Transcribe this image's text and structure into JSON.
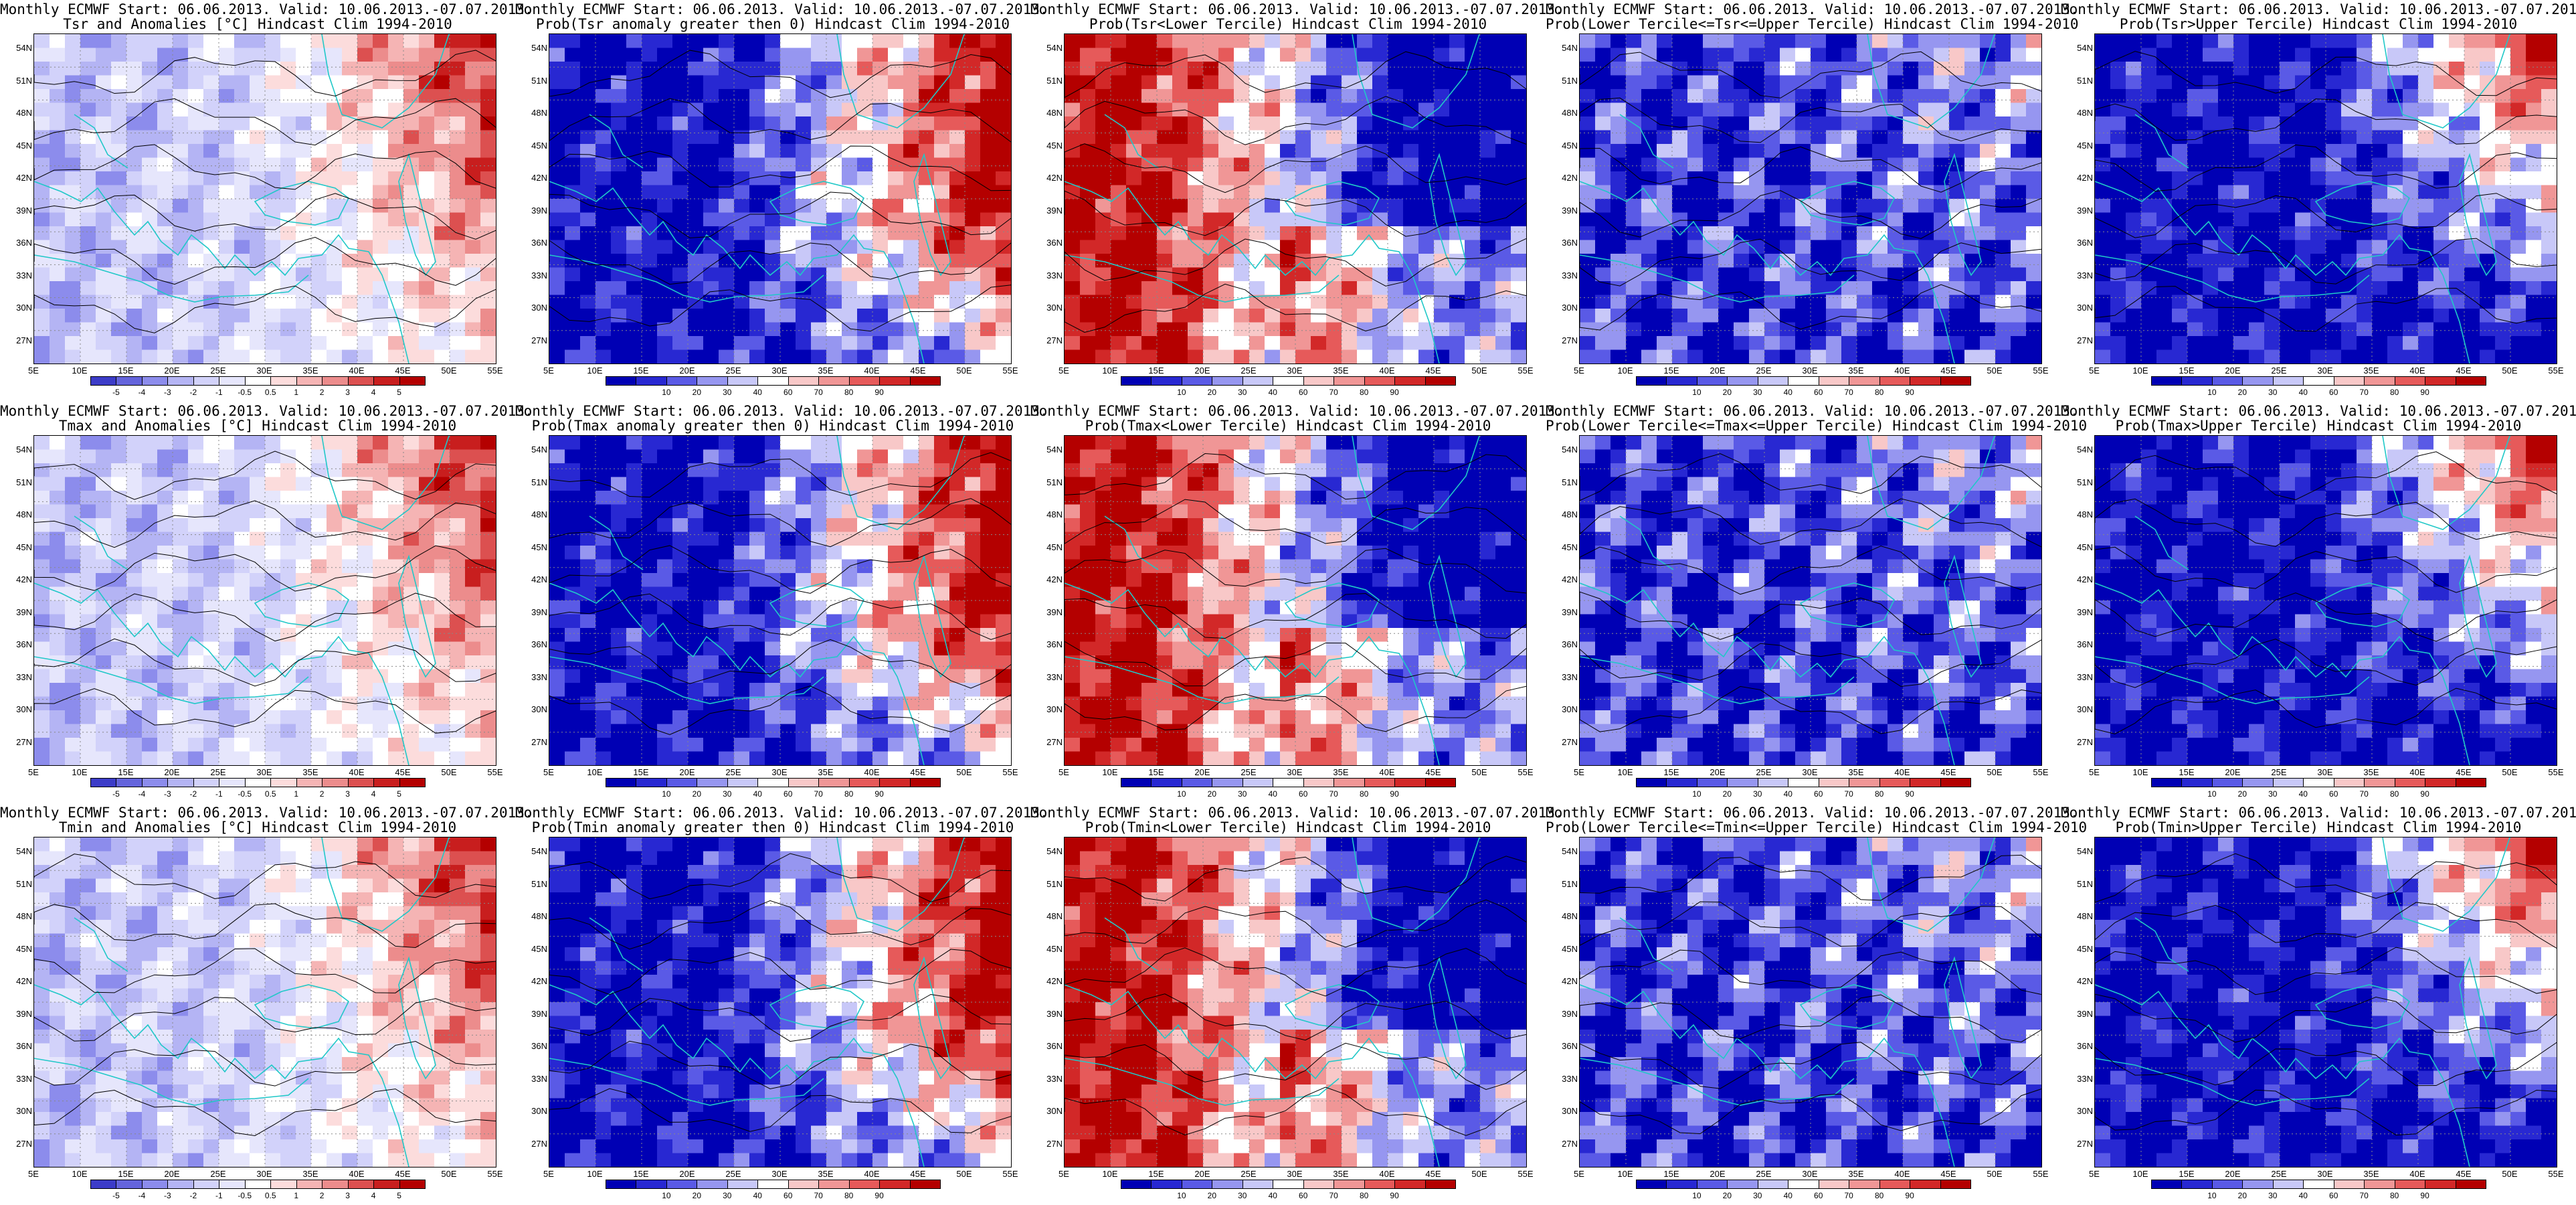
{
  "header_common": "Monthly ECMWF Start: 06.06.2013. Valid: 10.06.2013.-07.07.2013.",
  "lat_labels": [
    "54N",
    "51N",
    "48N",
    "45N",
    "42N",
    "39N",
    "36N",
    "33N",
    "30N",
    "27N"
  ],
  "lon_labels": [
    "5E",
    "10E",
    "15E",
    "20E",
    "25E",
    "30E",
    "35E",
    "40E",
    "45E",
    "50E",
    "55E"
  ],
  "anomaly_scale": [
    "-5",
    "-4",
    "-3",
    "-2",
    "-1",
    "-0.5",
    "0.5",
    "1",
    "2",
    "3",
    "4",
    "5"
  ],
  "prob_scale": [
    "10",
    "20",
    "30",
    "40",
    "60",
    "70",
    "80",
    "90"
  ],
  "colors": {
    "coast": "#20c8c8",
    "contour": "#000000",
    "deep_blue": "#0000b4",
    "deep_red": "#b40000"
  },
  "panels": [
    {
      "title": "Tsr and Anomalies [°C] Hindcast Clim 1994-2010",
      "kind": "anomaly",
      "pattern": 0
    },
    {
      "title": "Prob(Tsr anomaly greater then 0) Hindcast Clim 1994-2010",
      "kind": "prob",
      "pattern": 1
    },
    {
      "title": "Prob(Tsr<Lower Tercile) Hindcast Clim 1994-2010",
      "kind": "prob",
      "pattern": 2
    },
    {
      "title": "Prob(Lower Tercile<=Tsr<=Upper Tercile) Hindcast Clim 1994-2010",
      "kind": "prob",
      "pattern": 3
    },
    {
      "title": "Prob(Tsr>Upper Tercile) Hindcast Clim 1994-2010",
      "kind": "prob",
      "pattern": 4
    },
    {
      "title": "Tmax and Anomalies [°C] Hindcast Clim 1994-2010",
      "kind": "anomaly",
      "pattern": 0
    },
    {
      "title": "Prob(Tmax anomaly greater then 0) Hindcast Clim 1994-2010",
      "kind": "prob",
      "pattern": 1
    },
    {
      "title": "Prob(Tmax<Lower Tercile) Hindcast Clim 1994-2010",
      "kind": "prob",
      "pattern": 2
    },
    {
      "title": "Prob(Lower Tercile<=Tmax<=Upper Tercile) Hindcast Clim 1994-2010",
      "kind": "prob",
      "pattern": 3
    },
    {
      "title": "Prob(Tmax>Upper Tercile) Hindcast Clim 1994-2010",
      "kind": "prob",
      "pattern": 4
    },
    {
      "title": "Tmin and Anomalies [°C] Hindcast Clim 1994-2010",
      "kind": "anomaly",
      "pattern": 0
    },
    {
      "title": "Prob(Tmin anomaly greater then 0) Hindcast Clim 1994-2010",
      "kind": "prob",
      "pattern": 1
    },
    {
      "title": "Prob(Tmin<Lower Tercile) Hindcast Clim 1994-2010",
      "kind": "prob",
      "pattern": 2
    },
    {
      "title": "Prob(Lower Tercile<=Tmin<=Upper Tercile) Hindcast Clim 1994-2010",
      "kind": "prob",
      "pattern": 3
    },
    {
      "title": "Prob(Tmin>Upper Tercile) Hindcast Clim 1994-2010",
      "kind": "prob",
      "pattern": 4
    }
  ]
}
